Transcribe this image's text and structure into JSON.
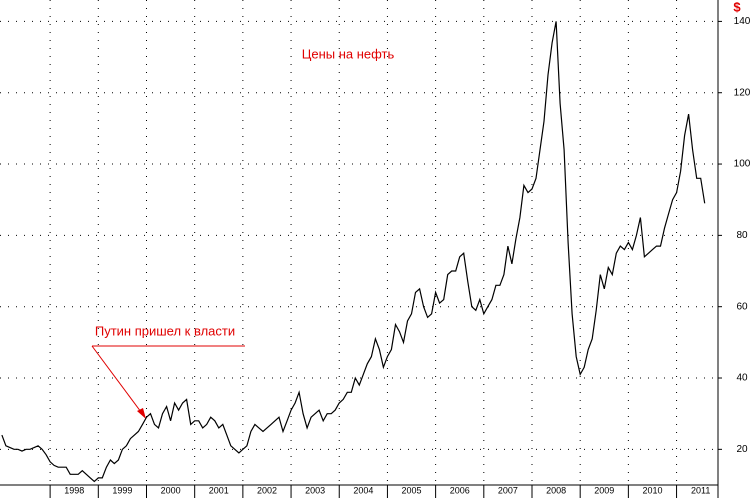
{
  "chart_data": {
    "type": "line",
    "title": "Цены на нефть",
    "y_unit": "$",
    "annotations": [
      "Путин пришел к власти"
    ],
    "xlim": [
      1996.96,
      2011.86
    ],
    "xticks": [
      {
        "value": 1998,
        "label": "1998"
      },
      {
        "value": 1999,
        "label": "1999"
      },
      {
        "value": 2000,
        "label": "2000"
      },
      {
        "value": 2001,
        "label": "2001"
      },
      {
        "value": 2002,
        "label": "2002"
      },
      {
        "value": 2003,
        "label": "2003"
      },
      {
        "value": 2004,
        "label": "2004"
      },
      {
        "value": 2005,
        "label": "2005"
      },
      {
        "value": 2006,
        "label": "2006"
      },
      {
        "value": 2007,
        "label": "2007"
      },
      {
        "value": 2008,
        "label": "2008"
      },
      {
        "value": 2009,
        "label": "2009"
      },
      {
        "value": 2010,
        "label": "2010"
      },
      {
        "value": 2011,
        "label": "2011"
      }
    ],
    "ylim": [
      10,
      146
    ],
    "yticks": [
      20,
      40,
      60,
      80,
      100,
      120,
      140
    ],
    "grid": true,
    "series": [
      {
        "color": "#000000",
        "x": [
          1997,
          1997.083,
          1997.167,
          1997.25,
          1997.333,
          1997.417,
          1997.5,
          1997.583,
          1997.667,
          1997.75,
          1997.833,
          1997.917,
          1998,
          1998.083,
          1998.167,
          1998.25,
          1998.333,
          1998.417,
          1998.5,
          1998.583,
          1998.667,
          1998.75,
          1998.833,
          1998.917,
          1999,
          1999.083,
          1999.167,
          1999.25,
          1999.333,
          1999.417,
          1999.5,
          1999.583,
          1999.667,
          1999.75,
          1999.833,
          1999.917,
          2000,
          2000.083,
          2000.167,
          2000.25,
          2000.333,
          2000.417,
          2000.5,
          2000.583,
          2000.667,
          2000.75,
          2000.833,
          2000.917,
          2001,
          2001.083,
          2001.167,
          2001.25,
          2001.333,
          2001.417,
          2001.5,
          2001.583,
          2001.667,
          2001.75,
          2001.833,
          2001.917,
          2002,
          2002.083,
          2002.167,
          2002.25,
          2002.333,
          2002.417,
          2002.5,
          2002.583,
          2002.667,
          2002.75,
          2002.833,
          2002.917,
          2003,
          2003.083,
          2003.167,
          2003.25,
          2003.333,
          2003.417,
          2003.5,
          2003.583,
          2003.667,
          2003.75,
          2003.833,
          2003.917,
          2004,
          2004.083,
          2004.167,
          2004.25,
          2004.333,
          2004.417,
          2004.5,
          2004.583,
          2004.667,
          2004.75,
          2004.833,
          2004.917,
          2005,
          2005.083,
          2005.167,
          2005.25,
          2005.333,
          2005.417,
          2005.5,
          2005.583,
          2005.667,
          2005.75,
          2005.833,
          2005.917,
          2006,
          2006.083,
          2006.167,
          2006.25,
          2006.333,
          2006.417,
          2006.5,
          2006.583,
          2006.667,
          2006.75,
          2006.833,
          2006.917,
          2007,
          2007.083,
          2007.167,
          2007.25,
          2007.333,
          2007.417,
          2007.5,
          2007.583,
          2007.667,
          2007.75,
          2007.833,
          2007.917,
          2008,
          2008.083,
          2008.167,
          2008.25,
          2008.333,
          2008.417,
          2008.5,
          2008.583,
          2008.667,
          2008.75,
          2008.833,
          2008.917,
          2009,
          2009.083,
          2009.167,
          2009.25,
          2009.333,
          2009.417,
          2009.5,
          2009.583,
          2009.667,
          2009.75,
          2009.833,
          2009.917,
          2010,
          2010.083,
          2010.167,
          2010.25,
          2010.333,
          2010.417,
          2010.5,
          2010.583,
          2010.667,
          2010.75,
          2010.833,
          2010.917,
          2011,
          2011.083,
          2011.167,
          2011.25,
          2011.333,
          2011.417,
          2011.5,
          2011.583
        ],
        "values": [
          24,
          21,
          20.5,
          20,
          20,
          19.5,
          20,
          20,
          20.5,
          21,
          20,
          18.5,
          16.5,
          15.5,
          15,
          15,
          15,
          13,
          13,
          13,
          14,
          13,
          12,
          11,
          12,
          12,
          15,
          17,
          16,
          17,
          20,
          21,
          23,
          24,
          25,
          27,
          29,
          30,
          27,
          26,
          30,
          32,
          28,
          33,
          31,
          33,
          34,
          27,
          28,
          28,
          26,
          27,
          29,
          28,
          26,
          27,
          24,
          21,
          20,
          19,
          20,
          21,
          25,
          27,
          26,
          25,
          26,
          27,
          28,
          29,
          25,
          28,
          31,
          33,
          36,
          30,
          26,
          29,
          30,
          31,
          28,
          30,
          30,
          31,
          33,
          34,
          36,
          36,
          40,
          38,
          41,
          44,
          46,
          51,
          48,
          43,
          46,
          48,
          55,
          53,
          50,
          56,
          58,
          64,
          65,
          60,
          57,
          58,
          64,
          61,
          62,
          69,
          70,
          70,
          74,
          75,
          67,
          60,
          59,
          62,
          58,
          60,
          62,
          66,
          66,
          69,
          77,
          72,
          79,
          85,
          94,
          92,
          93,
          96,
          104,
          112,
          125,
          134,
          140,
          117,
          104,
          78,
          58,
          46,
          41,
          43,
          48,
          51,
          59,
          69,
          65,
          71,
          69,
          75,
          77,
          76,
          78,
          76,
          80,
          85,
          74,
          75,
          76,
          77,
          77,
          82,
          86,
          90,
          92,
          98,
          108,
          114,
          104,
          96,
          96,
          89
        ]
      }
    ]
  }
}
